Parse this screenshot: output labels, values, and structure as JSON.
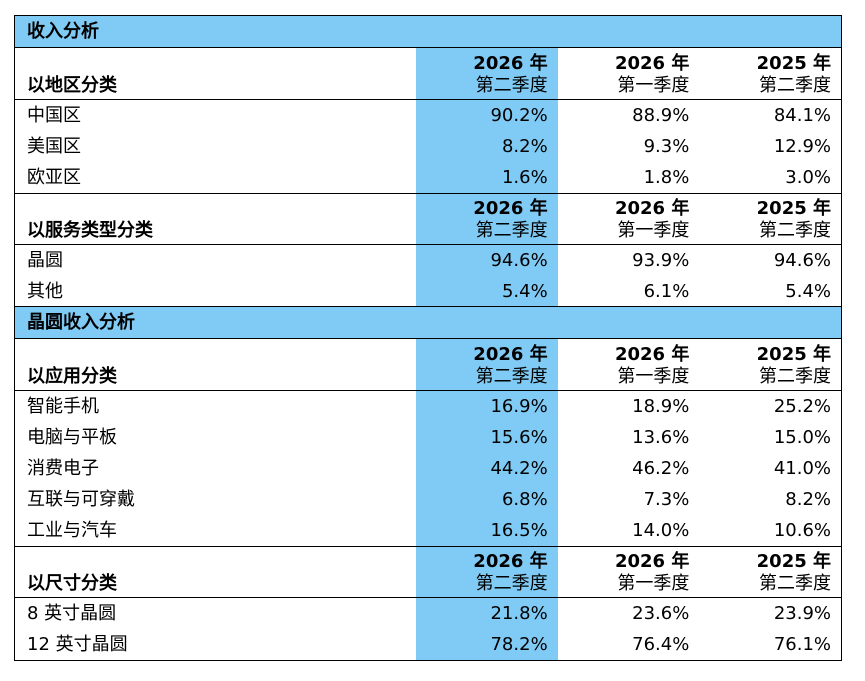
{
  "sections": {
    "revenue": {
      "title": "收入分析",
      "groups": {
        "region": {
          "heading": "以地区分类",
          "cols": [
            {
              "year": "2026 年",
              "quarter": "第二季度"
            },
            {
              "year": "2026 年",
              "quarter": "第一季度"
            },
            {
              "year": "2025 年",
              "quarter": "第二季度"
            }
          ],
          "rows": [
            {
              "label": "中国区",
              "v": [
                "90.2%",
                "88.9%",
                "84.1%"
              ]
            },
            {
              "label": "美国区",
              "v": [
                "8.2%",
                "9.3%",
                "12.9%"
              ]
            },
            {
              "label": "欧亚区",
              "v": [
                "1.6%",
                "1.8%",
                "3.0%"
              ]
            }
          ]
        },
        "service": {
          "heading": "以服务类型分类",
          "cols": [
            {
              "year": "2026 年",
              "quarter": "第二季度"
            },
            {
              "year": "2026 年",
              "quarter": "第一季度"
            },
            {
              "year": "2025 年",
              "quarter": "第二季度"
            }
          ],
          "rows": [
            {
              "label": "晶圆",
              "v": [
                "94.6%",
                "93.9%",
                "94.6%"
              ]
            },
            {
              "label": "其他",
              "v": [
                "5.4%",
                "6.1%",
                "5.4%"
              ]
            }
          ]
        }
      }
    },
    "wafer": {
      "title": "晶圆收入分析",
      "groups": {
        "application": {
          "heading": "以应用分类",
          "cols": [
            {
              "year": "2026 年",
              "quarter": "第二季度"
            },
            {
              "year": "2026 年",
              "quarter": "第一季度"
            },
            {
              "year": "2025 年",
              "quarter": "第二季度"
            }
          ],
          "rows": [
            {
              "label": "智能手机",
              "v": [
                "16.9%",
                "18.9%",
                "25.2%"
              ]
            },
            {
              "label": "电脑与平板",
              "v": [
                "15.6%",
                "13.6%",
                "15.0%"
              ]
            },
            {
              "label": "消费电子",
              "v": [
                "44.2%",
                "46.2%",
                "41.0%"
              ]
            },
            {
              "label": "互联与可穿戴",
              "v": [
                "6.8%",
                "7.3%",
                "8.2%"
              ]
            },
            {
              "label": "工业与汽车",
              "v": [
                "16.5%",
                "14.0%",
                "10.6%"
              ]
            }
          ]
        },
        "size": {
          "heading": "以尺寸分类",
          "cols": [
            {
              "year": "2026 年",
              "quarter": "第二季度"
            },
            {
              "year": "2026 年",
              "quarter": "第一季度"
            },
            {
              "year": "2025 年",
              "quarter": "第二季度"
            }
          ],
          "rows": [
            {
              "label": "8 英寸晶圆",
              "v": [
                "21.8%",
                "23.6%",
                "23.9%"
              ]
            },
            {
              "label": "12 英寸晶圆",
              "v": [
                "78.2%",
                "76.4%",
                "76.1%"
              ]
            }
          ]
        }
      }
    }
  },
  "colors": {
    "highlight": "#80cbf5",
    "border": "#000000"
  }
}
